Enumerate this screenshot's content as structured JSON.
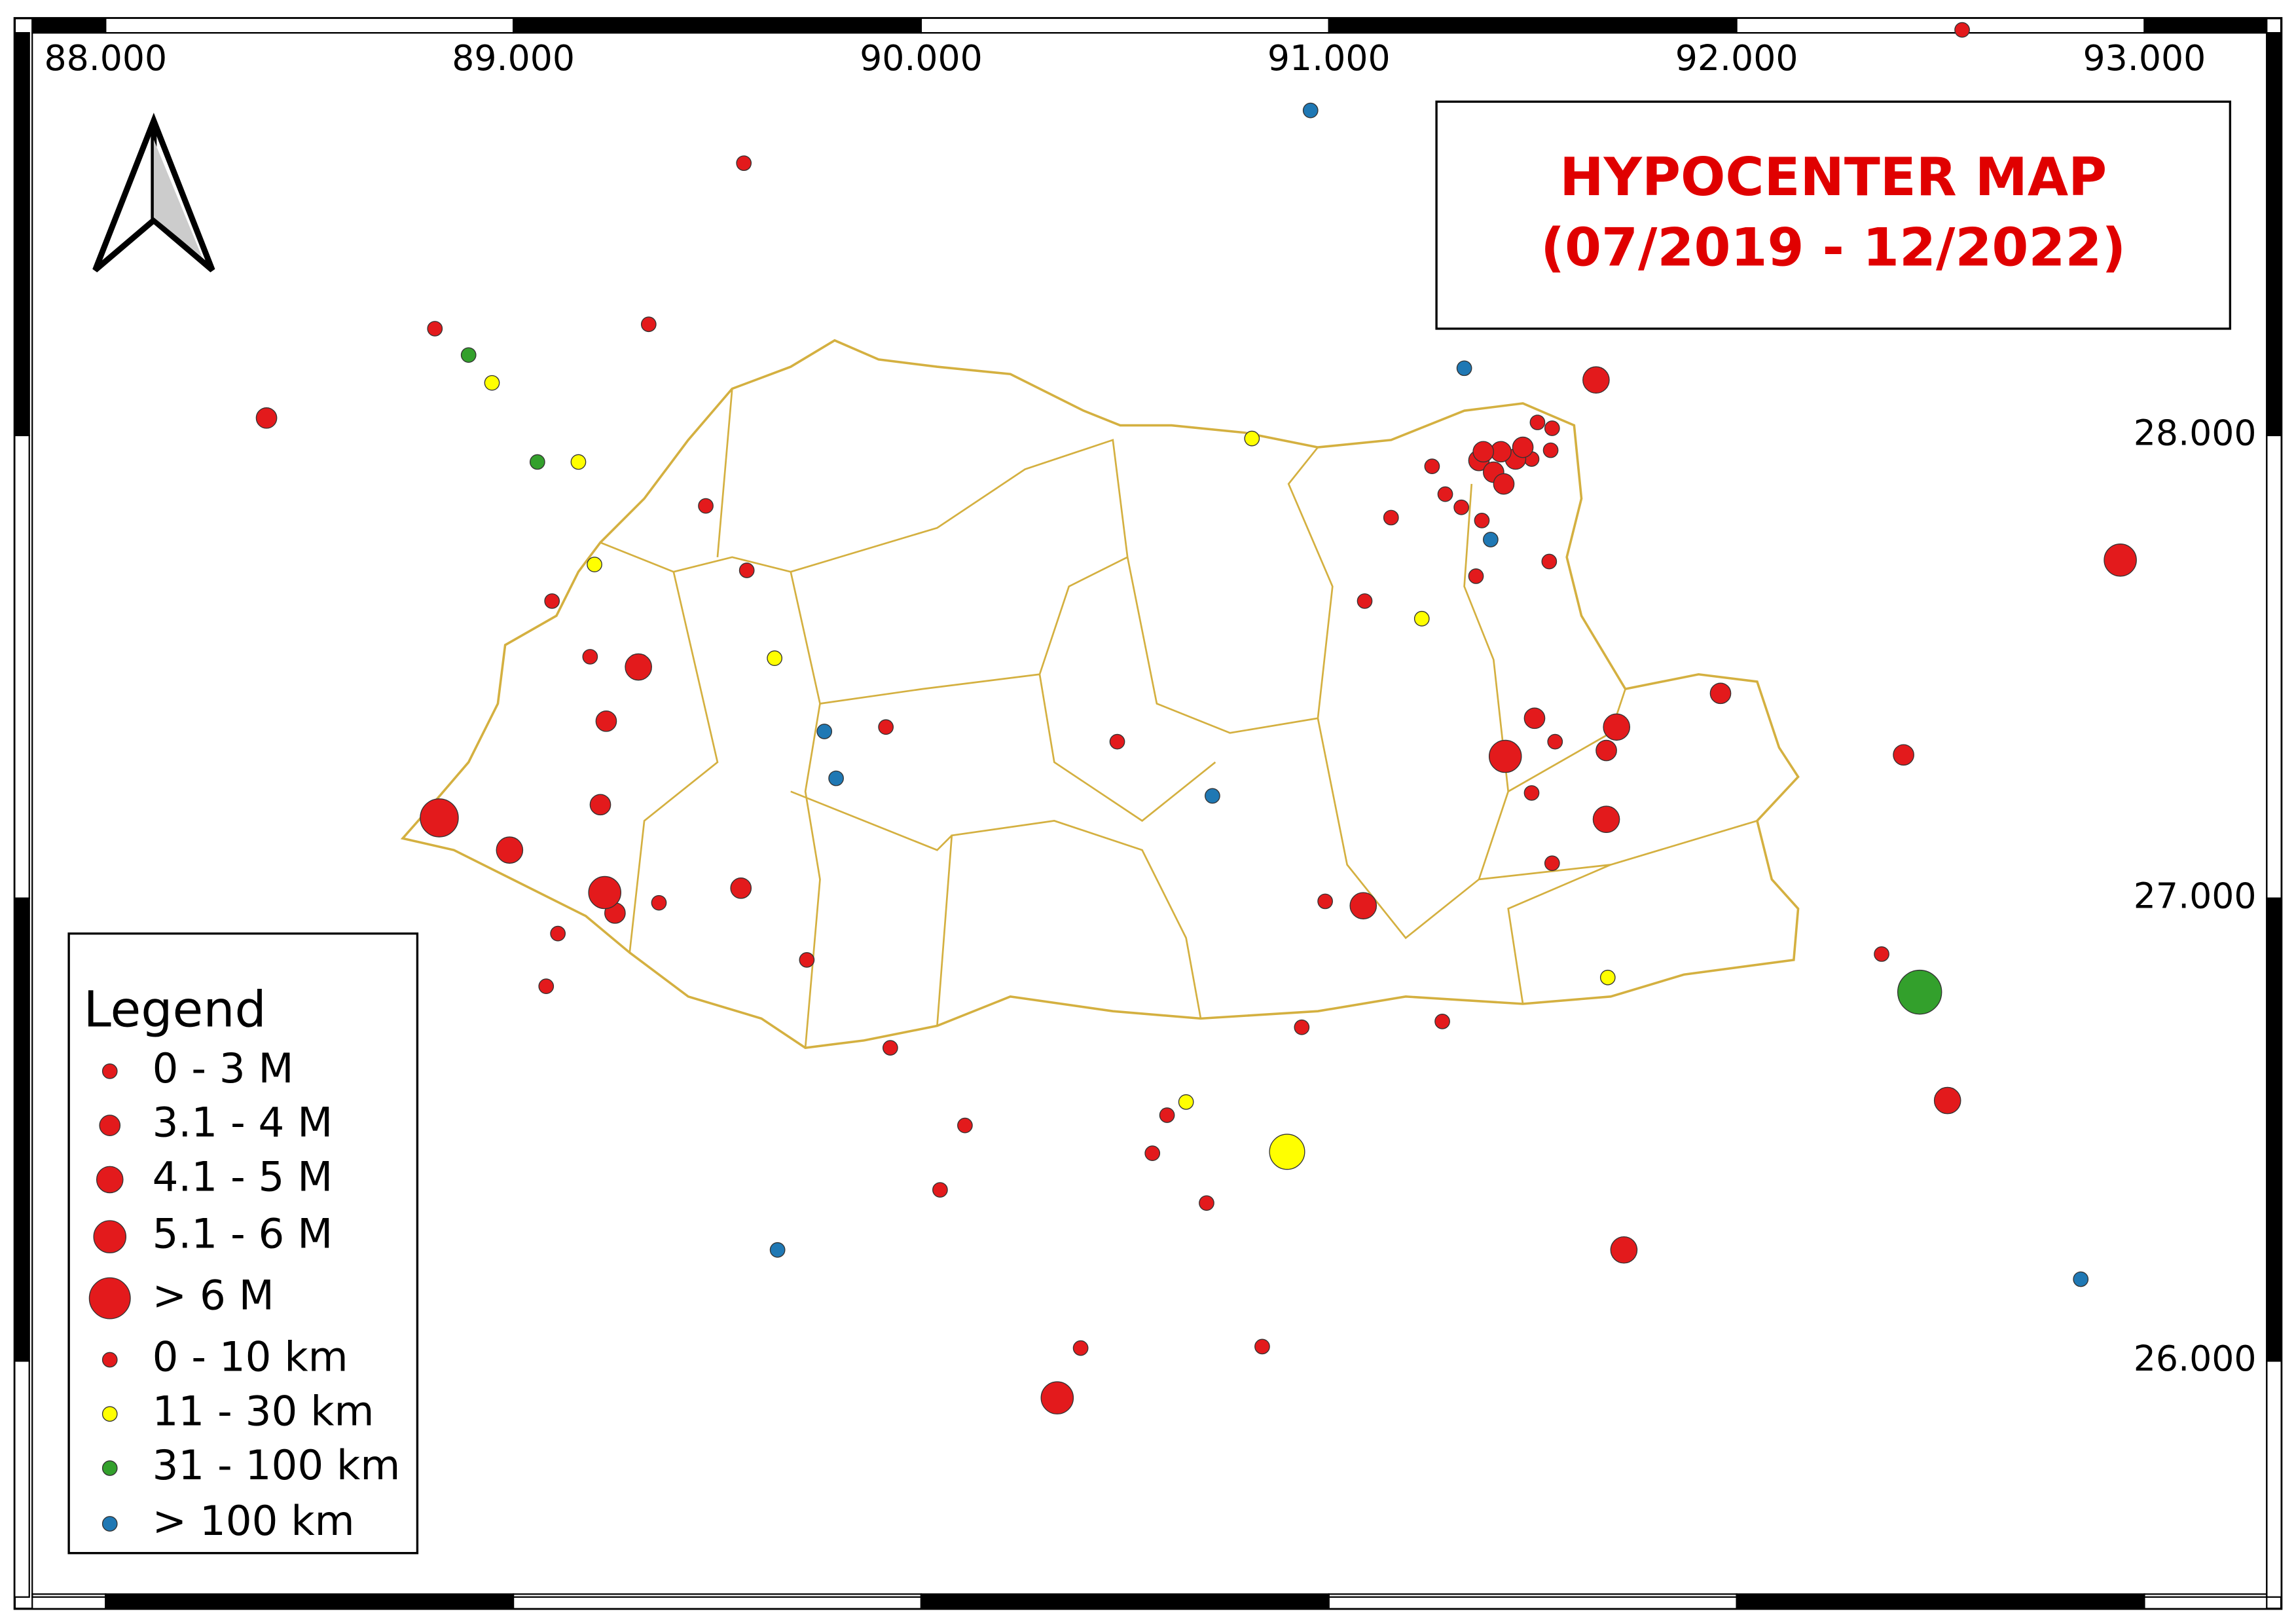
{
  "map": {
    "title": [
      "HYPOCENTER MAP",
      "(07/2019 - 12/2022)"
    ],
    "xlim": [
      87.82,
      93.3
    ],
    "ylim": [
      25.49,
      28.87
    ],
    "xticks": [
      {
        "value": 88,
        "label": "88.000"
      },
      {
        "value": 89,
        "label": "89.000"
      },
      {
        "value": 90,
        "label": "90.000"
      },
      {
        "value": 91,
        "label": "91.000"
      },
      {
        "value": 92,
        "label": "92.000"
      },
      {
        "value": 93,
        "label": "93.000"
      }
    ],
    "yticks": [
      {
        "value": 28,
        "label": "28.000"
      },
      {
        "value": 27,
        "label": "27.000"
      },
      {
        "value": 26,
        "label": "26.000"
      }
    ],
    "legend": {
      "title": "Legend",
      "items": [
        "0 - 3 M",
        "3.1 - 4 M",
        "4.1 - 5 M",
        "5.1 - 6 M",
        "> 6 M",
        "0 - 10 km",
        "11 - 30 km",
        "31 - 100 km",
        "> 100 km"
      ]
    }
  }
}
